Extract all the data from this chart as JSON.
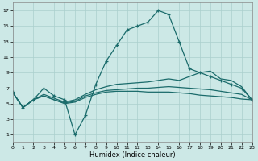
{
  "xlabel": "Humidex (Indice chaleur)",
  "x_ticks": [
    0,
    1,
    2,
    3,
    4,
    5,
    6,
    7,
    8,
    9,
    10,
    11,
    12,
    13,
    14,
    15,
    16,
    17,
    18,
    19,
    20,
    21,
    22,
    23
  ],
  "y_ticks": [
    1,
    3,
    5,
    7,
    9,
    11,
    13,
    15,
    17
  ],
  "xlim": [
    0,
    23
  ],
  "ylim": [
    0,
    18
  ],
  "bg_color": "#cce8e6",
  "grid_color": "#aacfcd",
  "line_color": "#1a6b6b",
  "lines": [
    {
      "x": [
        0,
        1,
        2,
        3,
        4,
        5,
        6,
        7,
        8,
        9,
        10,
        11,
        12,
        13,
        14,
        15,
        16,
        17,
        18,
        19,
        20,
        21,
        22,
        23
      ],
      "y": [
        6.5,
        4.5,
        5.5,
        7.0,
        6.0,
        5.5,
        1.0,
        3.5,
        7.5,
        10.5,
        12.5,
        14.5,
        15.0,
        15.5,
        17.0,
        16.5,
        13.0,
        9.5,
        9.0,
        8.5,
        8.0,
        7.5,
        7.0,
        5.5
      ],
      "marker": true
    },
    {
      "x": [
        0,
        1,
        2,
        3,
        4,
        5,
        6,
        7,
        8,
        9,
        10,
        11,
        12,
        13,
        14,
        15,
        16,
        17,
        18,
        19,
        20,
        21,
        22,
        23
      ],
      "y": [
        6.5,
        4.5,
        5.5,
        6.2,
        5.7,
        5.2,
        5.5,
        6.2,
        6.8,
        7.2,
        7.5,
        7.6,
        7.7,
        7.8,
        8.0,
        8.2,
        8.0,
        8.5,
        9.0,
        9.2,
        8.2,
        8.0,
        7.2,
        5.5
      ],
      "marker": false
    },
    {
      "x": [
        0,
        1,
        2,
        3,
        4,
        5,
        6,
        7,
        8,
        9,
        10,
        11,
        12,
        13,
        14,
        15,
        16,
        17,
        18,
        19,
        20,
        21,
        22,
        23
      ],
      "y": [
        6.5,
        4.5,
        5.5,
        6.0,
        5.5,
        5.1,
        5.3,
        6.0,
        6.4,
        6.7,
        6.8,
        6.9,
        7.0,
        7.0,
        7.1,
        7.2,
        7.1,
        7.0,
        6.9,
        6.8,
        6.6,
        6.4,
        6.2,
        5.5
      ],
      "marker": false
    },
    {
      "x": [
        0,
        1,
        2,
        3,
        4,
        5,
        6,
        7,
        8,
        9,
        10,
        11,
        12,
        13,
        14,
        15,
        16,
        17,
        18,
        19,
        20,
        21,
        22,
        23
      ],
      "y": [
        6.5,
        4.5,
        5.5,
        6.0,
        5.5,
        5.0,
        5.2,
        5.8,
        6.2,
        6.5,
        6.6,
        6.6,
        6.6,
        6.5,
        6.5,
        6.5,
        6.4,
        6.3,
        6.1,
        6.0,
        5.9,
        5.8,
        5.6,
        5.5
      ],
      "marker": false
    }
  ]
}
